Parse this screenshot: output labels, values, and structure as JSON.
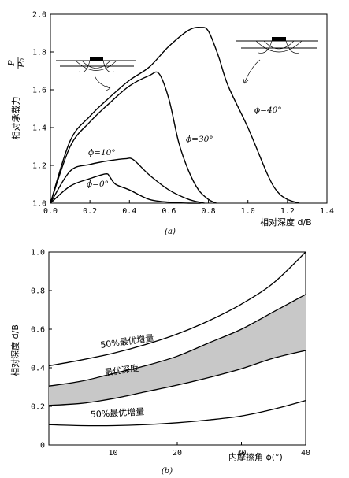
{
  "chart_data": [
    {
      "type": "line",
      "panel_label": "(a)",
      "xlabel": "相对深度 d/B",
      "ylabel_prefix": "相对承载力",
      "ylabel_num": "P",
      "ylabel_den": "P₀",
      "xlim": [
        0.0,
        1.4
      ],
      "ylim": [
        1.0,
        2.0
      ],
      "xticks": [
        "0.0",
        "0.2",
        "0.4",
        "0.6",
        "0.8",
        "1.0",
        "1.2",
        "1.4"
      ],
      "yticks": [
        "1.0",
        "1.2",
        "1.4",
        "1.6",
        "1.8",
        "2.0"
      ],
      "series": [
        {
          "name": "ϕ=0°",
          "x": [
            0.0,
            0.1,
            0.2,
            0.28,
            0.3,
            0.33,
            0.4,
            0.5,
            0.6,
            0.7,
            0.76
          ],
          "y": [
            1.0,
            1.09,
            1.13,
            1.155,
            1.14,
            1.1,
            1.07,
            1.02,
            1.005,
            1.0,
            1.0
          ]
        },
        {
          "name": "ϕ=10°",
          "x": [
            0.0,
            0.1,
            0.2,
            0.3,
            0.38,
            0.42,
            0.5,
            0.6,
            0.7,
            0.78
          ],
          "y": [
            1.0,
            1.17,
            1.205,
            1.225,
            1.235,
            1.23,
            1.15,
            1.07,
            1.02,
            1.0
          ]
        },
        {
          "name": "ϕ=30°",
          "x": [
            0.0,
            0.1,
            0.2,
            0.3,
            0.4,
            0.5,
            0.55,
            0.6,
            0.65,
            0.7,
            0.75,
            0.8,
            0.84
          ],
          "y": [
            1.0,
            1.3,
            1.43,
            1.53,
            1.62,
            1.675,
            1.685,
            1.55,
            1.32,
            1.17,
            1.07,
            1.02,
            1.0
          ]
        },
        {
          "name": "ϕ=40°",
          "x": [
            0.0,
            0.1,
            0.2,
            0.3,
            0.4,
            0.5,
            0.6,
            0.7,
            0.76,
            0.8,
            0.85,
            0.9,
            1.0,
            1.1,
            1.15,
            1.2,
            1.26
          ],
          "y": [
            1.0,
            1.33,
            1.46,
            1.56,
            1.65,
            1.72,
            1.83,
            1.915,
            1.93,
            1.91,
            1.78,
            1.62,
            1.4,
            1.15,
            1.06,
            1.02,
            1.0
          ]
        }
      ]
    },
    {
      "type": "area",
      "panel_label": "(b)",
      "xlabel": "内摩擦角 ϕ(°)",
      "ylabel": "相对深度 d/B",
      "xlim": [
        0,
        40
      ],
      "ylim": [
        0.0,
        1.0
      ],
      "xticks": [
        "10",
        "20",
        "30",
        "40"
      ],
      "yticks": [
        "0",
        "0.2",
        "0.4",
        "0.6",
        "0.8",
        "1.0"
      ],
      "x": [
        0,
        5,
        10,
        15,
        20,
        25,
        30,
        35,
        40
      ],
      "series": [
        {
          "name": "50%最优增量",
          "values": [
            0.41,
            0.44,
            0.475,
            0.52,
            0.575,
            0.645,
            0.73,
            0.84,
            1.0
          ]
        },
        {
          "name": "最优深度",
          "values": [
            0.205,
            0.215,
            0.24,
            0.275,
            0.31,
            0.35,
            0.395,
            0.45,
            0.49
          ],
          "band_upper": [
            0.305,
            0.33,
            0.37,
            0.41,
            0.46,
            0.53,
            0.6,
            0.69,
            0.78
          ]
        },
        {
          "name": "50%最优增量",
          "values": [
            0.105,
            0.1,
            0.1,
            0.105,
            0.115,
            0.13,
            0.15,
            0.185,
            0.23
          ]
        }
      ]
    }
  ],
  "colors": {
    "band_fill": "#c8c8c8",
    "line": "#000000"
  },
  "labels": {
    "phi0": "ϕ=0°",
    "phi10": "ϕ=10°",
    "phi30": "ϕ=30°",
    "phi40": "ϕ=40°",
    "upper": "50%最优增量",
    "middle": "最优深度",
    "lower": "50%最优增量"
  }
}
